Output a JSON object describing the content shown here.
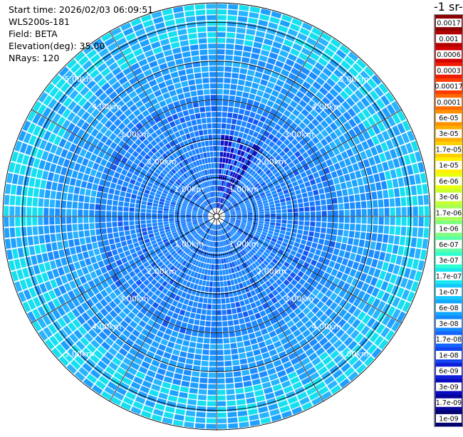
{
  "header": {
    "start_time": "Start time: 2026/02/03 06:09:51",
    "instrument": "WLS200s-181",
    "field": "Field: BETA",
    "elevation": "Elevation(deg): 35.00",
    "nrays": "NRays: 120"
  },
  "colorbar": {
    "title": "-1 sr-",
    "labels": [
      "0.0017",
      "0.001",
      "0.0006",
      "0.0003",
      "0.00017",
      "0.0001",
      "6e-05",
      "3e-05",
      "1.7e-05",
      "1e-05",
      "6e-06",
      "3e-06",
      "1.7e-06",
      "1e-06",
      "6e-07",
      "3e-07",
      "1.7e-07",
      "1e-07",
      "6e-08",
      "3e-08",
      "1.7e-08",
      "1e-08",
      "6e-09",
      "3e-09",
      "1.7e-09",
      "1e-09"
    ],
    "colors": [
      "#8b0000",
      "#b30000",
      "#d40000",
      "#ef1c00",
      "#ff3c00",
      "#ff6a00",
      "#ff9100",
      "#ffae00",
      "#ffcf00",
      "#fff000",
      "#e8ff10",
      "#c8ff30",
      "#a8ff58",
      "#80ff80",
      "#5affa8",
      "#30ffd0",
      "#1ae8f0",
      "#14c8ff",
      "#14a8ff",
      "#1488ff",
      "#1464ff",
      "#1444f0",
      "#1020d8",
      "#0a0cc0",
      "#06069a",
      "#030370"
    ]
  },
  "chart_data": {
    "type": "heatmap",
    "projection": "polar PPI",
    "title": "",
    "nrays": 120,
    "range_rings_km": [
      1,
      2,
      3,
      4,
      5
    ],
    "ring_labels": [
      "1.00km",
      "2.00km",
      "3.00km",
      "4.00km",
      "5.00km"
    ],
    "max_range_km": 5.5,
    "scale": "log",
    "value_min": 1e-09,
    "value_max": 0.0017,
    "typical_value": 3e-08,
    "description_colors": {
      "ring_outer_band": "#16f0f0",
      "dominant": "#1c8cff",
      "low": "#1458f0",
      "plume": "#1010c8"
    }
  }
}
